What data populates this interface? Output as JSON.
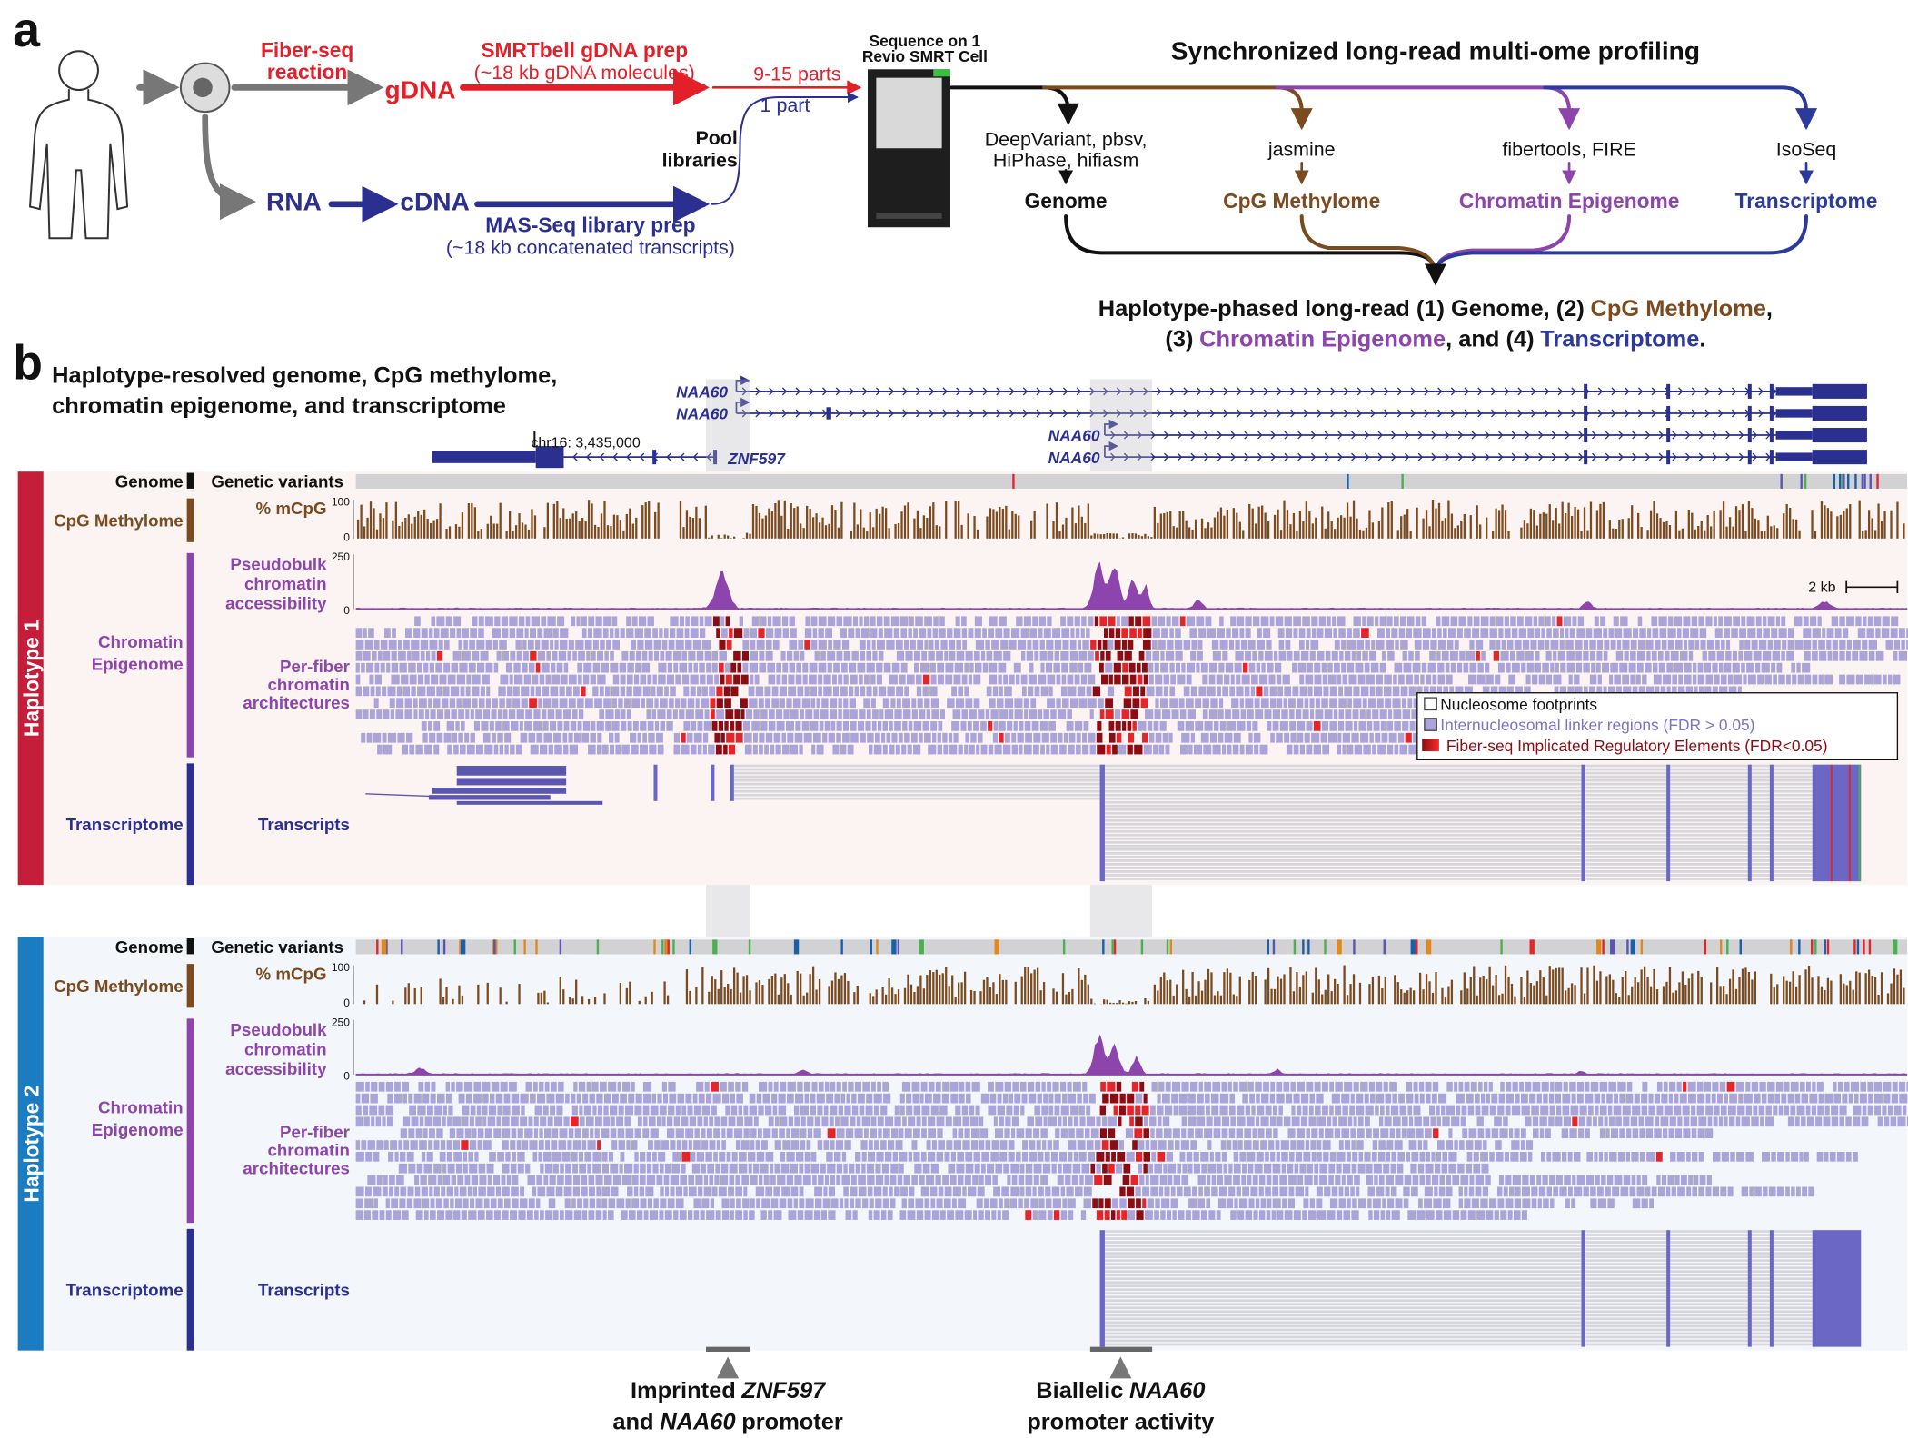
{
  "panel_a": {
    "label": "a",
    "fiberseq": [
      "Fiber-seq",
      "reaction"
    ],
    "gdna": "gDNA",
    "rna": "RNA",
    "cdna": "cDNA",
    "smrtbell": [
      "SMRTbell gDNA prep",
      "(~18 kb gDNA molecules)"
    ],
    "masseq": [
      "MAS-Seq library prep",
      "(~18 kb concatenated transcripts)"
    ],
    "parts": [
      "9-15 parts",
      "1 part"
    ],
    "pool": [
      "Pool",
      "libraries"
    ],
    "sequence": [
      "Sequence on 1",
      "Revio SMRT Cell"
    ],
    "profiling_title": "Synchronized long-read multi-ome profiling",
    "omes": [
      {
        "tools": [
          "DeepVariant, pbsv,",
          "HiPhase, hifiasm"
        ],
        "name": "Genome"
      },
      {
        "tools": [
          "jasmine"
        ],
        "name": "CpG Methylome"
      },
      {
        "tools": [
          "fibertools, FIRE"
        ],
        "name": "Chromatin Epigenome"
      },
      {
        "tools": [
          "IsoSeq"
        ],
        "name": "Transcriptome"
      }
    ],
    "summary": [
      [
        "Haplotype-phased long-read (1) Genome, (2)",
        "CpG Methylome",
        ","
      ],
      [
        "(3)",
        "Chromatin Epigenome",
        ", and (4)",
        "Transcriptome",
        "."
      ]
    ]
  },
  "panel_b": {
    "label": "b",
    "title": [
      "Haplotype-resolved genome, CpG methylome,",
      "chromatin epigenome, and transcriptome"
    ],
    "genes": [
      "NAA60",
      "NAA60",
      "NAA60",
      "NAA60",
      "ZNF597"
    ],
    "coordinate": "chr16: 3,435,000",
    "scale_bar": "2 kb",
    "legend": [
      "Nucleosome footprints",
      "Internucleosomal linker regions (FDR > 0.05)",
      "Fiber-seq Implicated Regulatory Elements (FDR<0.05)"
    ],
    "haplotypes": [
      {
        "name": "Haplotype 1",
        "genome": "Genome",
        "variants": "Genetic variants",
        "cpg": "CpG Methylome",
        "mcpg": "% mCpG",
        "mcpg_ticks": [
          100,
          0
        ],
        "chromatin": [
          "Chromatin",
          "Epigenome"
        ],
        "pseudobulk": [
          "Pseudobulk",
          "chromatin",
          "accessibility"
        ],
        "access_ticks": [
          250,
          0
        ],
        "perfiber": [
          "Per-fiber",
          "chromatin",
          "architectures"
        ],
        "transcriptome": "Transcriptome",
        "transcripts": "Transcripts"
      },
      {
        "name": "Haplotype 2",
        "genome": "Genome",
        "variants": "Genetic variants",
        "cpg": "CpG Methylome",
        "mcpg": "% mCpG",
        "mcpg_ticks": [
          100,
          0
        ],
        "chromatin": [
          "Chromatin",
          "Epigenome"
        ],
        "pseudobulk": [
          "Pseudobulk",
          "chromatin",
          "accessibility"
        ],
        "access_ticks": [
          250,
          0
        ],
        "perfiber": [
          "Per-fiber",
          "chromatin",
          "architectures"
        ],
        "transcriptome": "Transcriptome",
        "transcripts": "Transcripts"
      }
    ],
    "annotations": [
      {
        "lines": [
          [
            "Imprinted",
            "ZNF597"
          ],
          [
            "and",
            "NAA60",
            "promoter"
          ]
        ]
      },
      {
        "lines": [
          [
            "Biallelic",
            "NAA60"
          ],
          [
            "promoter activity"
          ]
        ]
      }
    ]
  }
}
